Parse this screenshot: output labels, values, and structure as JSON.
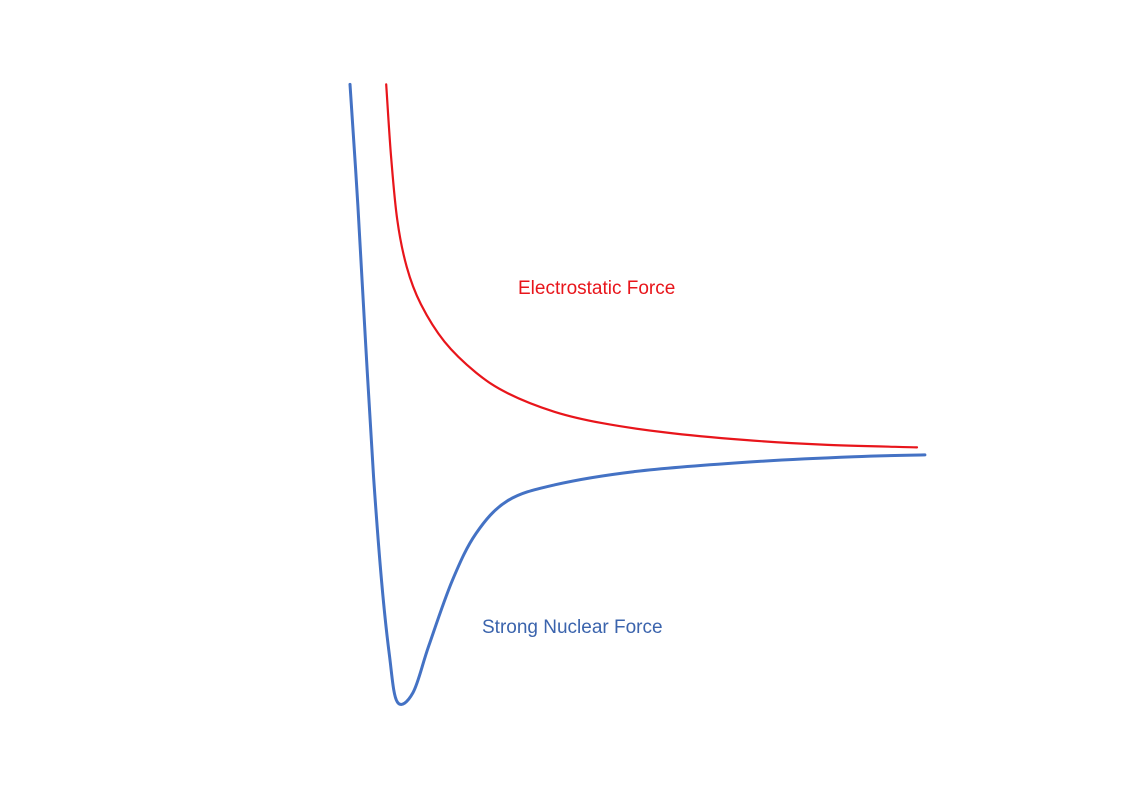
{
  "chart_data": {
    "type": "line",
    "xlabel": "",
    "ylabel": "",
    "xlim": [
      0,
      4
    ],
    "ylim": [
      -3,
      4
    ],
    "grid": false,
    "series": [
      {
        "name": "Electrostatic Force",
        "color": "#e8151b",
        "x": [
          0.23,
          0.26,
          0.3,
          0.36,
          0.45,
          0.6,
          0.8,
          1.0,
          1.3,
          1.6,
          2.0,
          2.5,
          3.0,
          3.6
        ],
        "y": [
          3.9,
          3.15,
          2.45,
          1.95,
          1.55,
          1.15,
          0.82,
          0.6,
          0.4,
          0.28,
          0.18,
          0.1,
          0.05,
          0.02
        ]
      },
      {
        "name": "Strong Nuclear Force",
        "color": "#4472c4",
        "x": [
          0.0,
          0.05,
          0.1,
          0.15,
          0.2,
          0.25,
          0.3,
          0.4,
          0.5,
          0.65,
          0.8,
          1.0,
          1.3,
          1.8,
          2.5,
          3.2,
          3.65
        ],
        "y": [
          3.9,
          2.6,
          1.1,
          -0.3,
          -1.4,
          -2.2,
          -2.7,
          -2.6,
          -2.1,
          -1.4,
          -0.9,
          -0.55,
          -0.38,
          -0.24,
          -0.14,
          -0.08,
          -0.06
        ]
      }
    ]
  }
}
